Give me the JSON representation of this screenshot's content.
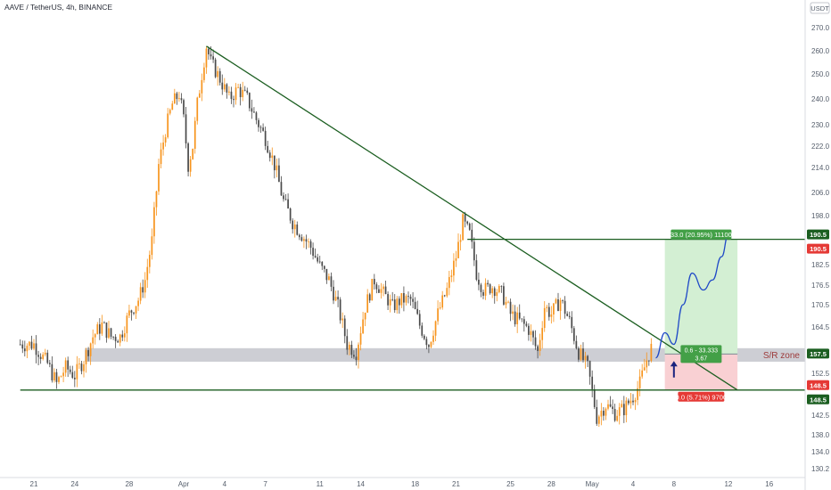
{
  "header": {
    "symbol_line": "AAVE / TetherUS, 4h, BINANCE",
    "currency": "USDT"
  },
  "chart_data": {
    "type": "candlestick",
    "ylim": [
      128,
      276
    ],
    "y_ticks": [
      {
        "v": 270.0,
        "label": "270.0"
      },
      {
        "v": 260.0,
        "label": "260.0"
      },
      {
        "v": 250.0,
        "label": "250.0"
      },
      {
        "v": 240.0,
        "label": "240.0"
      },
      {
        "v": 230.0,
        "label": "230.0"
      },
      {
        "v": 222.0,
        "label": "222.0"
      },
      {
        "v": 214.0,
        "label": "214.0"
      },
      {
        "v": 206.0,
        "label": "206.0"
      },
      {
        "v": 198.0,
        "label": "198.0"
      },
      {
        "v": 182.5,
        "label": "182.5"
      },
      {
        "v": 176.5,
        "label": "176.5"
      },
      {
        "v": 170.5,
        "label": "170.5"
      },
      {
        "v": 164.5,
        "label": "164.5"
      },
      {
        "v": 152.5,
        "label": "152.5"
      },
      {
        "v": 142.5,
        "label": "142.5"
      },
      {
        "v": 138.0,
        "label": "138.0"
      },
      {
        "v": 134.0,
        "label": "134.0"
      },
      {
        "v": 130.2,
        "label": "130.2"
      }
    ],
    "x_ticks": [
      {
        "i": 0,
        "label": "21"
      },
      {
        "i": 18,
        "label": "24"
      },
      {
        "i": 42,
        "label": "28"
      },
      {
        "i": 66,
        "label": "Apr"
      },
      {
        "i": 84,
        "label": "4"
      },
      {
        "i": 102,
        "label": "7"
      },
      {
        "i": 126,
        "label": "11"
      },
      {
        "i": 144,
        "label": "14"
      },
      {
        "i": 168,
        "label": "18"
      },
      {
        "i": 186,
        "label": "21"
      },
      {
        "i": 210,
        "label": "25"
      },
      {
        "i": 228,
        "label": "28"
      },
      {
        "i": 246,
        "label": "May"
      },
      {
        "i": 264,
        "label": "4"
      },
      {
        "i": 282,
        "label": "8"
      },
      {
        "i": 306,
        "label": "12"
      },
      {
        "i": 324,
        "label": "16"
      }
    ],
    "x_index_range": [
      -7,
      330
    ],
    "price_anchors": [
      [
        0,
        160
      ],
      [
        6,
        155
      ],
      [
        10,
        150
      ],
      [
        14,
        154
      ],
      [
        18,
        152
      ],
      [
        22,
        156
      ],
      [
        26,
        162
      ],
      [
        30,
        165
      ],
      [
        34,
        162
      ],
      [
        38,
        162
      ],
      [
        42,
        168
      ],
      [
        46,
        172
      ],
      [
        49,
        178
      ],
      [
        52,
        190
      ],
      [
        55,
        215
      ],
      [
        58,
        228
      ],
      [
        61,
        238
      ],
      [
        64,
        242
      ],
      [
        66,
        232
      ],
      [
        68,
        215
      ],
      [
        70,
        222
      ],
      [
        72,
        238
      ],
      [
        74,
        250
      ],
      [
        76,
        262
      ],
      [
        78,
        255
      ],
      [
        82,
        248
      ],
      [
        86,
        240
      ],
      [
        90,
        244
      ],
      [
        94,
        240
      ],
      [
        98,
        232
      ],
      [
        102,
        225
      ],
      [
        106,
        215
      ],
      [
        110,
        203
      ],
      [
        114,
        196
      ],
      [
        118,
        192
      ],
      [
        122,
        188
      ],
      [
        126,
        182
      ],
      [
        130,
        178
      ],
      [
        134,
        170
      ],
      [
        138,
        160
      ],
      [
        142,
        158
      ],
      [
        146,
        170
      ],
      [
        150,
        178
      ],
      [
        154,
        174
      ],
      [
        158,
        170
      ],
      [
        162,
        172
      ],
      [
        166,
        172
      ],
      [
        170,
        165
      ],
      [
        174,
        160
      ],
      [
        178,
        168
      ],
      [
        182,
        175
      ],
      [
        186,
        185
      ],
      [
        189,
        196
      ],
      [
        192,
        192
      ],
      [
        195,
        180
      ],
      [
        198,
        175
      ],
      [
        202,
        176
      ],
      [
        206,
        174
      ],
      [
        210,
        168
      ],
      [
        214,
        166
      ],
      [
        218,
        164
      ],
      [
        222,
        158
      ],
      [
        225,
        170
      ],
      [
        228,
        168
      ],
      [
        232,
        172
      ],
      [
        236,
        166
      ],
      [
        240,
        158
      ],
      [
        244,
        154
      ],
      [
        246,
        148
      ],
      [
        248,
        142
      ],
      [
        252,
        145
      ],
      [
        256,
        143
      ],
      [
        260,
        144
      ],
      [
        264,
        147
      ],
      [
        267,
        150
      ],
      [
        270,
        156
      ],
      [
        272,
        159
      ]
    ],
    "sr_zone": {
      "low": 155.5,
      "high": 159.0,
      "label": "S/R zone"
    },
    "support_line": {
      "price": 148.5,
      "from_index": -6,
      "to_index": 330
    },
    "resistance_line": {
      "price": 190.5,
      "from_index": 191,
      "to_index": 330
    },
    "trendline": {
      "from": {
        "i": 76,
        "price": 262
      },
      "to": {
        "i": 310,
        "price": 148.5
      }
    },
    "position": {
      "from_index": 278,
      "to_index": 310,
      "entry": 157.5,
      "target": 190.5,
      "stop": 148.5,
      "target_label": "33.0 (20.95%) 11100",
      "stop_label": "9.0 (5.71%) 9700",
      "ratio_label_line1": "0.6 - 33.333",
      "ratio_label_line2": "3.67"
    },
    "projection": [
      [
        274,
        156.5
      ],
      [
        278,
        163
      ],
      [
        282,
        160
      ],
      [
        286,
        170.5
      ],
      [
        290,
        180
      ],
      [
        295,
        175
      ],
      [
        299,
        178
      ],
      [
        303,
        185
      ],
      [
        306,
        192
      ]
    ],
    "arrow": {
      "i": 282,
      "from_price": 151.5,
      "to_price": 155.2
    },
    "price_labels": [
      {
        "price": 190.5,
        "text": "190.5",
        "color": "#1b5e20"
      },
      {
        "price": 190.5,
        "text": "190.5",
        "color": "#e53935"
      },
      {
        "price": 157.5,
        "text": "157.5",
        "color": "#1b5e20"
      },
      {
        "price": 148.5,
        "text": "148.5",
        "color": "#e53935"
      },
      {
        "price": 148.5,
        "text": "148.5",
        "color": "#1b5e20"
      }
    ],
    "colors": {
      "up": "#f7941d",
      "down": "#4a4a4a",
      "trendline": "#1b5e20",
      "zone": "#c4c6cc",
      "target_fill": "#d3efd3",
      "stop_fill": "#f9d0d3",
      "target_tag": "#43a047",
      "stop_tag": "#e53935",
      "projection": "#1f49c7",
      "sr_text": "#9c3a3a"
    }
  }
}
